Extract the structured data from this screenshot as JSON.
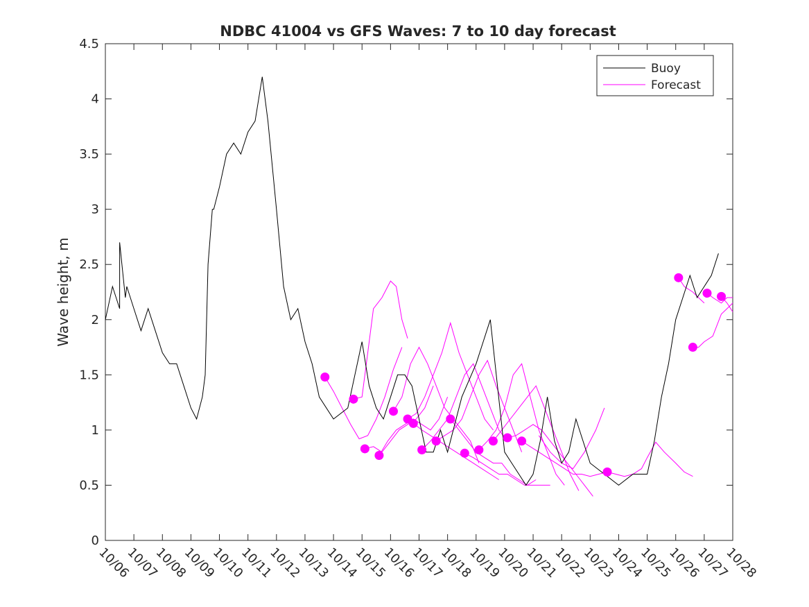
{
  "chart_data": {
    "type": "line",
    "title": "NDBC 41004 vs GFS Waves: 7 to 10 day forecast",
    "xlabel": "",
    "ylabel": "Wave height, m",
    "xlim": [
      0,
      22
    ],
    "ylim": [
      0,
      4.5
    ],
    "x_unit": "days since 10/06",
    "x_tick_labels": [
      "10/06",
      "10/07",
      "10/08",
      "10/09",
      "10/10",
      "10/11",
      "10/12",
      "10/13",
      "10/14",
      "10/15",
      "10/16",
      "10/17",
      "10/18",
      "10/19",
      "10/20",
      "10/21",
      "10/22",
      "10/23",
      "10/24",
      "10/25",
      "10/26",
      "10/27",
      "10/28"
    ],
    "y_ticks": [
      0,
      0.5,
      1,
      1.5,
      2,
      2.5,
      3,
      3.5,
      4,
      4.5
    ],
    "y_tick_labels": [
      "0",
      "0.5",
      "1",
      "1.5",
      "2",
      "2.5",
      "3",
      "3.5",
      "4",
      "4.5"
    ],
    "legend": {
      "position": "top-right",
      "entries": [
        {
          "label": "Buoy",
          "color": "#000000"
        },
        {
          "label": "Forecast",
          "color": "#ff00ff"
        }
      ]
    },
    "series": [
      {
        "name": "Buoy",
        "color": "#000000",
        "x": [
          0.0,
          0.25,
          0.5,
          0.5,
          0.7,
          0.75,
          1.0,
          1.25,
          1.5,
          1.75,
          2.0,
          2.25,
          2.5,
          2.75,
          3.0,
          3.2,
          3.4,
          3.5,
          3.6,
          3.75,
          3.8,
          4.0,
          4.25,
          4.5,
          4.75,
          5.0,
          5.25,
          5.5,
          5.7,
          6.0,
          6.25,
          6.5,
          6.75,
          7.0,
          7.25,
          7.5,
          8.0,
          8.5,
          9.0,
          9.25,
          9.5,
          9.75,
          10.0,
          10.25,
          10.5,
          10.75,
          11.0,
          11.25,
          11.5,
          11.75,
          12.0,
          12.5,
          13.0,
          13.5,
          14.0,
          14.25,
          14.5,
          14.75,
          15.0,
          15.25,
          15.5,
          15.75,
          16.0,
          16.25,
          16.5,
          17.0,
          17.5,
          18.0,
          18.5,
          19.0,
          19.25,
          19.5,
          19.75,
          20.0,
          20.25,
          20.5,
          20.75,
          21.0,
          21.25,
          21.5
        ],
        "y": [
          2.0,
          2.3,
          2.1,
          2.7,
          2.2,
          2.3,
          2.1,
          1.9,
          2.1,
          1.9,
          1.7,
          1.6,
          1.6,
          1.4,
          1.2,
          1.1,
          1.3,
          1.5,
          2.5,
          3.0,
          3.0,
          3.2,
          3.5,
          3.6,
          3.5,
          3.7,
          3.8,
          4.2,
          3.8,
          3.0,
          2.3,
          2.0,
          2.1,
          1.8,
          1.6,
          1.3,
          1.1,
          1.2,
          1.8,
          1.4,
          1.2,
          1.1,
          1.3,
          1.5,
          1.5,
          1.4,
          1.1,
          0.8,
          0.8,
          1.0,
          0.8,
          1.3,
          1.6,
          2.0,
          0.8,
          0.7,
          0.6,
          0.5,
          0.6,
          0.9,
          1.3,
          0.9,
          0.7,
          0.8,
          1.1,
          0.7,
          0.6,
          0.5,
          0.6,
          0.6,
          0.9,
          1.3,
          1.6,
          2.0,
          2.2,
          2.4,
          2.2,
          2.3,
          2.4,
          2.6
        ]
      }
    ],
    "forecast_runs": [
      {
        "x": [
          7.7,
          8.0,
          8.3,
          8.6,
          8.9,
          9.2,
          9.5,
          9.8,
          10.1,
          10.4
        ],
        "y": [
          1.48,
          1.35,
          1.2,
          1.05,
          0.92,
          0.95,
          1.1,
          1.3,
          1.55,
          1.75
        ]
      },
      {
        "x": [
          8.7,
          9.0,
          9.2,
          9.4,
          9.7,
          10.0,
          10.2,
          10.4,
          10.6
        ],
        "y": [
          1.28,
          1.3,
          1.7,
          2.1,
          2.2,
          2.35,
          2.3,
          2.0,
          1.83
        ]
      },
      {
        "x": [
          9.1,
          9.4,
          9.7,
          10.0,
          10.3,
          10.6,
          10.9,
          11.2,
          11.5
        ],
        "y": [
          0.83,
          0.85,
          0.8,
          0.9,
          1.0,
          1.05,
          1.1,
          1.2,
          1.4
        ]
      },
      {
        "x": [
          9.6,
          9.9,
          10.2,
          10.5,
          10.8,
          11.1,
          11.4,
          11.7,
          12.0
        ],
        "y": [
          0.77,
          0.9,
          1.0,
          1.05,
          1.1,
          1.05,
          1.0,
          1.1,
          1.3
        ]
      },
      {
        "x": [
          10.1,
          10.4,
          10.7,
          11.0,
          11.3,
          11.6,
          11.9,
          12.2,
          12.5,
          12.8,
          13.1
        ],
        "y": [
          1.17,
          1.3,
          1.6,
          1.75,
          1.6,
          1.4,
          1.2,
          1.1,
          1.0,
          0.9,
          0.7
        ]
      },
      {
        "x": [
          10.6,
          10.9,
          11.2,
          11.5,
          11.8,
          12.1,
          12.4,
          12.7,
          13.0,
          13.3,
          13.6
        ],
        "y": [
          1.1,
          1.15,
          1.3,
          1.5,
          1.7,
          1.97,
          1.7,
          1.5,
          1.3,
          1.1,
          1.0
        ]
      },
      {
        "x": [
          10.8,
          11.1,
          11.4,
          11.7,
          12.0,
          12.3,
          12.6,
          12.9,
          13.2,
          13.5,
          13.8
        ],
        "y": [
          1.06,
          1.0,
          0.95,
          0.9,
          0.85,
          0.8,
          0.75,
          0.7,
          0.65,
          0.6,
          0.55
        ]
      },
      {
        "x": [
          11.1,
          11.4,
          11.7,
          12.0,
          12.3,
          12.6,
          12.9,
          13.2,
          13.5,
          13.8,
          14.1
        ],
        "y": [
          0.82,
          0.9,
          1.0,
          1.1,
          1.3,
          1.5,
          1.6,
          1.4,
          1.2,
          1.0,
          0.9
        ]
      },
      {
        "x": [
          11.6,
          11.9,
          12.2,
          12.5,
          12.8,
          13.1,
          13.4,
          13.7,
          14.0,
          14.3,
          14.6
        ],
        "y": [
          0.9,
          0.95,
          1.0,
          1.1,
          1.3,
          1.5,
          1.63,
          1.4,
          1.2,
          1.0,
          0.8
        ]
      },
      {
        "x": [
          12.1,
          12.4,
          12.7,
          13.0,
          13.3,
          13.6,
          13.9,
          14.2,
          14.5,
          14.8,
          15.1
        ],
        "y": [
          1.1,
          1.0,
          0.9,
          0.8,
          0.75,
          0.7,
          0.7,
          0.6,
          0.55,
          0.5,
          0.55
        ]
      },
      {
        "x": [
          12.6,
          12.9,
          13.2,
          13.5,
          13.8,
          14.1,
          14.4,
          14.7,
          15.0,
          15.3,
          15.6
        ],
        "y": [
          0.79,
          0.75,
          0.7,
          0.65,
          0.6,
          0.6,
          0.55,
          0.5,
          0.5,
          0.5,
          0.5
        ]
      },
      {
        "x": [
          13.1,
          13.4,
          13.7,
          14.0,
          14.3,
          14.6,
          14.9,
          15.2,
          15.5,
          15.8,
          16.1
        ],
        "y": [
          0.82,
          0.9,
          1.0,
          1.2,
          1.5,
          1.6,
          1.3,
          1.0,
          0.8,
          0.6,
          0.5
        ]
      },
      {
        "x": [
          13.6,
          13.9,
          14.2,
          14.5,
          14.8,
          15.1,
          15.4,
          15.7,
          16.0,
          16.3,
          16.6
        ],
        "y": [
          0.9,
          1.0,
          1.1,
          1.2,
          1.3,
          1.4,
          1.2,
          1.0,
          0.8,
          0.6,
          0.45
        ]
      },
      {
        "x": [
          14.1,
          14.4,
          14.7,
          15.0,
          15.3,
          15.6,
          15.9,
          16.2,
          16.5,
          16.8,
          17.1
        ],
        "y": [
          0.93,
          0.95,
          1.0,
          1.05,
          1.0,
          0.9,
          0.8,
          0.7,
          0.6,
          0.5,
          0.4
        ]
      },
      {
        "x": [
          14.6,
          14.9,
          15.2,
          15.5,
          15.8,
          16.1,
          16.4,
          16.7,
          17.0,
          17.3,
          17.6
        ],
        "y": [
          0.9,
          0.85,
          0.8,
          0.75,
          0.7,
          0.65,
          0.6,
          0.6,
          0.58,
          0.6,
          0.62
        ]
      },
      {
        "x": [
          15.2,
          15.6,
          16.0,
          16.4,
          16.8,
          17.2,
          17.5
        ],
        "y": [
          0.95,
          0.8,
          0.7,
          0.65,
          0.8,
          1.0,
          1.2
        ]
      },
      {
        "x": [
          17.6,
          17.9,
          18.2,
          18.5,
          18.8,
          19.0,
          19.3,
          19.6,
          20.0,
          20.3,
          20.6
        ],
        "y": [
          0.62,
          0.6,
          0.58,
          0.6,
          0.65,
          0.75,
          0.89,
          0.8,
          0.7,
          0.62,
          0.58
        ]
      },
      {
        "x": [
          20.1,
          20.3,
          20.6,
          20.8,
          21.0
        ],
        "y": [
          2.38,
          2.3,
          2.25,
          2.2,
          2.15
        ]
      },
      {
        "x": [
          20.6,
          20.8,
          21.0,
          21.3,
          21.6,
          21.8,
          22.0
        ],
        "y": [
          1.75,
          1.75,
          1.8,
          1.85,
          2.05,
          2.1,
          2.15
        ]
      },
      {
        "x": [
          21.1,
          21.3,
          21.6,
          21.8,
          22.0
        ],
        "y": [
          2.24,
          2.2,
          2.15,
          2.2,
          2.2
        ]
      },
      {
        "x": [
          21.6,
          21.8,
          22.0
        ],
        "y": [
          2.21,
          2.15,
          2.07
        ]
      }
    ],
    "forecast_markers": {
      "x": [
        7.7,
        8.7,
        9.1,
        9.6,
        10.1,
        10.6,
        10.8,
        11.1,
        11.6,
        12.1,
        12.6,
        13.1,
        13.6,
        14.1,
        14.6,
        17.6,
        20.1,
        20.6,
        21.1,
        21.6
      ],
      "y": [
        1.48,
        1.28,
        0.83,
        0.77,
        1.17,
        1.1,
        1.06,
        0.82,
        0.9,
        1.1,
        0.79,
        0.82,
        0.9,
        0.93,
        0.9,
        0.62,
        2.38,
        1.75,
        2.24,
        2.21
      ]
    }
  }
}
